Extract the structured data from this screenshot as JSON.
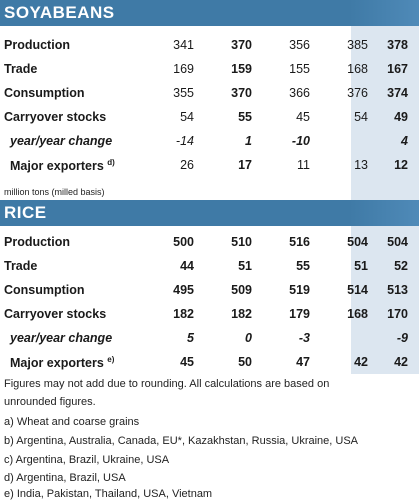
{
  "colors": {
    "header": "#3f7aa6",
    "shade": "#dce6f0"
  },
  "soyabeans": {
    "title": "SOYABEANS",
    "rows": [
      {
        "label": "Production",
        "v1": "341",
        "v2": "370",
        "v3": "356",
        "v4": "385",
        "v5": "378"
      },
      {
        "label": "Trade",
        "v1": "169",
        "v2": "159",
        "v3": "155",
        "v4": "168",
        "v5": "167"
      },
      {
        "label": "Consumption",
        "v1": "355",
        "v2": "370",
        "v3": "366",
        "v4": "376",
        "v5": "374"
      },
      {
        "label": "Carryover stocks",
        "v1": "54",
        "v2": "55",
        "v3": "45",
        "v4": "54",
        "v5": "49"
      },
      {
        "label": "year/year change",
        "v1": "-14",
        "v2": "1",
        "v3": "-10",
        "v4": "",
        "v5": "4"
      },
      {
        "label": "Major exporters",
        "note": "d)",
        "v1": "26",
        "v2": "17",
        "v3": "11",
        "v4": "13",
        "v5": "12"
      }
    ]
  },
  "units_note": "million tons (milled basis)",
  "rice": {
    "title": "RICE",
    "rows": [
      {
        "label": "Production",
        "v1": "500",
        "v2": "510",
        "v3": "516",
        "v4": "504",
        "v5": "504"
      },
      {
        "label": "Trade",
        "v1": "44",
        "v2": "51",
        "v3": "55",
        "v4": "51",
        "v5": "52"
      },
      {
        "label": "Consumption",
        "v1": "495",
        "v2": "509",
        "v3": "519",
        "v4": "514",
        "v5": "513"
      },
      {
        "label": "Carryover stocks",
        "v1": "182",
        "v2": "182",
        "v3": "179",
        "v4": "168",
        "v5": "170"
      },
      {
        "label": "year/year change",
        "v1": "5",
        "v2": "0",
        "v3": "-3",
        "v4": "",
        "v5": "-9"
      },
      {
        "label": "Major exporters",
        "note": "e)",
        "v1": "45",
        "v2": "50",
        "v3": "47",
        "v4": "42",
        "v5": "42"
      }
    ]
  },
  "footnotes": {
    "rounding_1": "Figures may not add due to rounding. All calculations are based on",
    "rounding_2": "unrounded figures.",
    "a": "a) Wheat and coarse grains",
    "b": "b) Argentina, Australia, Canada, EU*, Kazakhstan, Russia, Ukraine, USA",
    "c": "c) Argentina, Brazil, Ukraine, USA",
    "d": "d) Argentina, Brazil, USA",
    "e": "e) India, Pakistan, Thailand, USA, Vietnam"
  }
}
